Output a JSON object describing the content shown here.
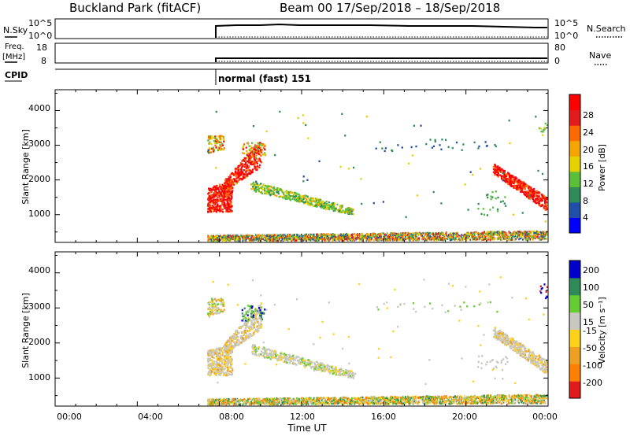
{
  "header": {
    "station": "Buckland Park (fitACF)",
    "beam_date": "Beam 00  17/Sep/2018 – 18/Sep/2018"
  },
  "sky_panel": {
    "left_label": "N.Sky",
    "right_label": "N.Search",
    "left_ticks": [
      "10^5",
      "10^0"
    ],
    "right_ticks": [
      "10^5",
      "10^0"
    ]
  },
  "freq_panel": {
    "left_label_1": "Freq.",
    "left_label_2": "[MHz]",
    "right_label": "Nave",
    "left_ticks": [
      "18",
      "8"
    ],
    "right_ticks": [
      "80",
      "0"
    ]
  },
  "cpid": {
    "label": "CPID",
    "mode_text": "normal (fast) 151"
  },
  "time_axis": {
    "label": "Time UT",
    "ticks": [
      "00:00",
      "04:00",
      "08:00",
      "12:00",
      "16:00",
      "20:00",
      "00:00"
    ]
  },
  "colors": {
    "power": [
      "#0000ff",
      "#1f4fa8",
      "#2e8b57",
      "#5cbf3a",
      "#e6d200",
      "#f5a400",
      "#ff6a00",
      "#e41a1c",
      "#ff0000"
    ],
    "velocity": [
      "#e31a1c",
      "#ff7f00",
      "#f0a020",
      "#ffd21a",
      "#c8c8c0",
      "#66cc33",
      "#2e8b57",
      "#0000cc"
    ]
  },
  "chart_data": [
    {
      "type": "heatmap",
      "name": "power",
      "xlabel": "Time UT",
      "ylabel": "Slant Range [km]",
      "xlim": [
        0,
        24
      ],
      "ylim": [
        200,
        4600
      ],
      "yticks": [
        "1000",
        "2000",
        "3000",
        "4000"
      ],
      "colorbar_label": "Power [dB]",
      "colorbar_ticks": [
        "4",
        "8",
        "12",
        "16",
        "20",
        "24",
        "28"
      ],
      "colorbar_range": [
        0,
        32
      ]
    },
    {
      "type": "heatmap",
      "name": "velocity",
      "xlabel": "Time UT",
      "ylabel": "Slant Range [km]",
      "xlim": [
        0,
        24
      ],
      "ylim": [
        200,
        4600
      ],
      "yticks": [
        "1000",
        "2000",
        "3000",
        "4000"
      ],
      "colorbar_label": "Velocity [m s⁻¹]",
      "colorbar_ticks": [
        "-200",
        "-100",
        "-50",
        "-15",
        "15",
        "50",
        "100",
        "200"
      ]
    }
  ]
}
